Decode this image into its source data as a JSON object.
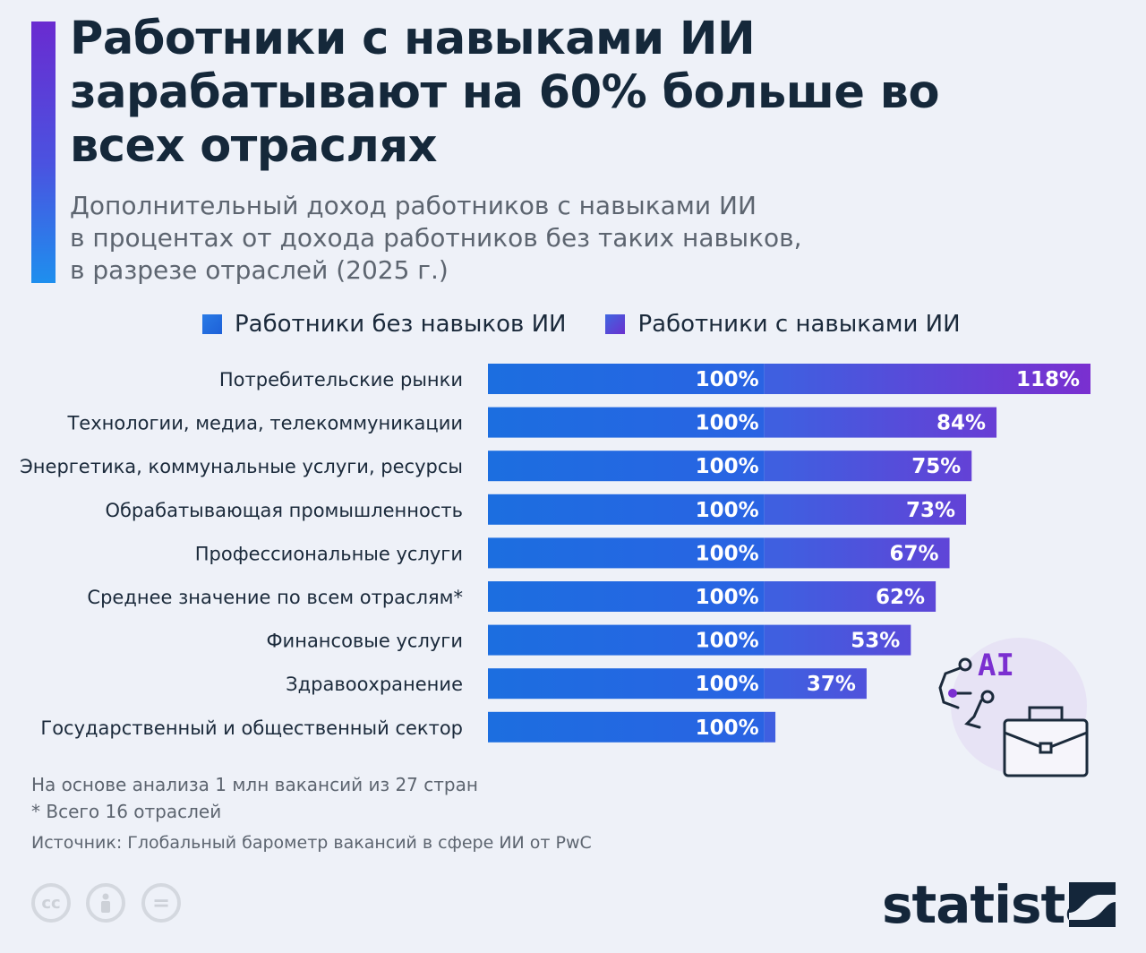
{
  "title": "Работники с навыками ИИ зарабатывают на 60% больше во всех отраслях",
  "subtitle_lines": [
    "Дополнительный доход работников с навыками ИИ",
    "в процентах от дохода работников без таких навыков,",
    "в разрезе отраслей (2025 г.)"
  ],
  "legend": {
    "without": "Работники без навыков ИИ",
    "with": "Работники с навыками ИИ"
  },
  "colors": {
    "base_bar": "#1d6fe0",
    "premium_start": "#3f5fe0",
    "premium_end": "#7a2fd0",
    "accent_top": "#6a2bd0",
    "accent_bottom": "#1e8fee"
  },
  "chart_data": {
    "type": "bar",
    "orientation": "horizontal",
    "stacked": true,
    "categories": [
      "Потребительские рынки",
      "Технологии, медиа, телекоммуникации",
      "Энергетика, коммунальные услуги, ресурсы",
      "Обрабатывающая промышленность",
      "Профессиональные услуги",
      "Среднее значение по всем отраслям*",
      "Финансовые услуги",
      "Здравоохранение",
      "Государственный и общественный сектор"
    ],
    "series": [
      {
        "name": "Работники без навыков ИИ",
        "values": [
          100,
          100,
          100,
          100,
          100,
          100,
          100,
          100,
          100
        ],
        "labels": [
          "100%",
          "100%",
          "100%",
          "100%",
          "100%",
          "100%",
          "100%",
          "100%",
          "100%"
        ]
      },
      {
        "name": "Работники с навыками ИИ",
        "values": [
          118,
          84,
          75,
          73,
          67,
          62,
          53,
          37,
          4
        ],
        "labels": [
          "118%",
          "84%",
          "75%",
          "73%",
          "67%",
          "62%",
          "53%",
          "37%",
          ""
        ]
      }
    ],
    "xlim": [
      0,
      218
    ],
    "grid": false,
    "legend_position": "top"
  },
  "notes": {
    "basis": "На основе анализа 1 млн вакансий из 27 стран",
    "footnote": "* Всего 16 отраслей",
    "source": "Источник: Глобальный барометр вакансий в сфере ИИ от PwC"
  },
  "icons": {
    "license": [
      "cc-icon",
      "by-icon",
      "nd-icon"
    ],
    "cc_text": "cc",
    "nd_text": "=",
    "illustration_text": "AI"
  },
  "brand": "statista"
}
